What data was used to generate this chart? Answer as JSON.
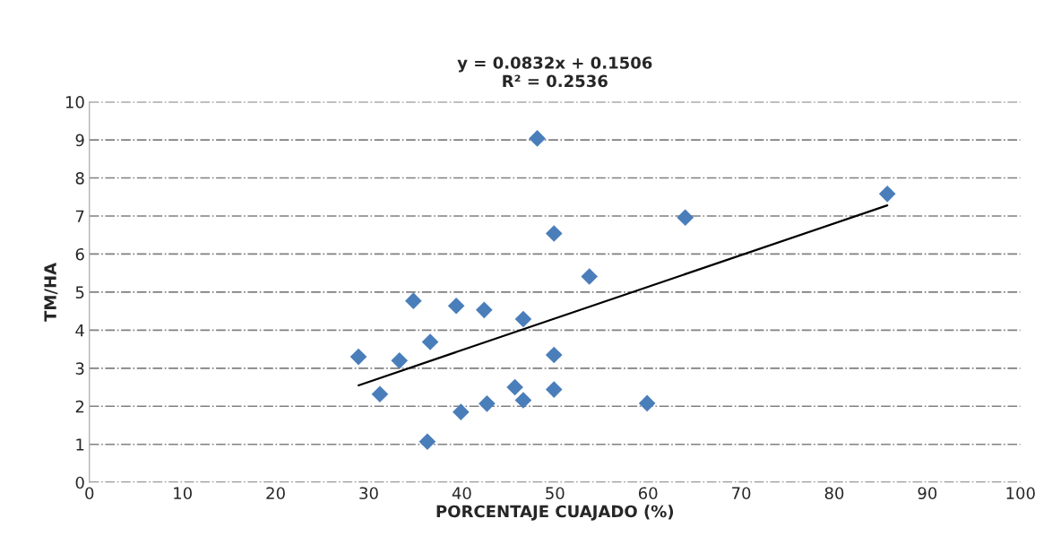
{
  "chart_data": {
    "type": "scatter",
    "title": "y = 0.0832x + 0.1506\nR² = 0.2536",
    "xlabel": "PORCENTAJE CUAJADO (%)",
    "ylabel": "TM/HA",
    "x": [
      28.9,
      31.2,
      33.3,
      34.8,
      36.6,
      36.3,
      39.4,
      39.9,
      42.4,
      42.7,
      45.7,
      46.6,
      46.6,
      48.1,
      49.9,
      49.9,
      49.9,
      64.0,
      53.7,
      59.9,
      85.7
    ],
    "series": [
      {
        "color": "#4a7ebb",
        "marker": "diamond",
        "values": [
          3.3,
          2.32,
          3.2,
          4.77,
          3.69,
          1.07,
          4.64,
          1.85,
          4.53,
          2.07,
          2.5,
          2.16,
          4.29,
          9.04,
          6.54,
          3.35,
          2.44,
          6.96,
          5.41,
          2.08,
          7.58
        ]
      },
      {
        "type": "line",
        "color": "#000000",
        "marker": "none",
        "line_style": "solid",
        "x": [
          28.9,
          85.7
        ],
        "values": [
          2.55,
          7.28
        ]
      }
    ],
    "xlim": [
      0,
      100
    ],
    "xticks": [
      0,
      10,
      20,
      30,
      40,
      50,
      60,
      70,
      80,
      90,
      100
    ],
    "ylim": [
      0,
      10
    ],
    "yticks": [
      0,
      1,
      2,
      3,
      4,
      5,
      6,
      7,
      8,
      9,
      10
    ],
    "grid": "y",
    "legend": false
  }
}
